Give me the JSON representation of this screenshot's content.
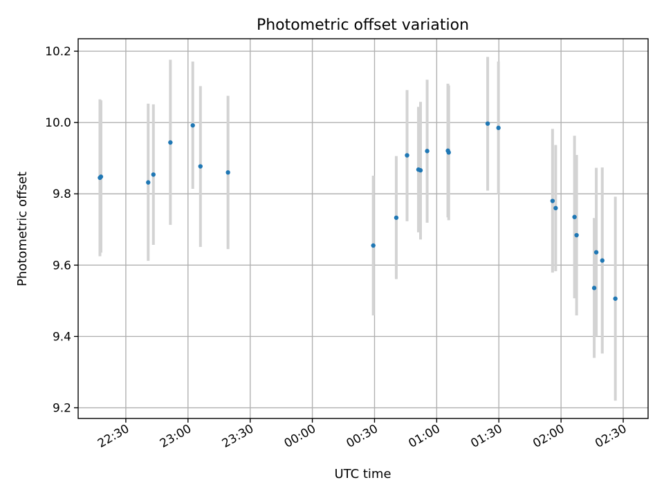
{
  "chart_data": {
    "type": "scatter",
    "title": "Photometric offset variation",
    "xlabel": "UTC time",
    "ylabel": "Photometric offset",
    "x_unit": "minutes",
    "xlim": [
      -113,
      162
    ],
    "ylim": [
      9.17,
      10.235
    ],
    "grid": true,
    "x_ticks": [
      {
        "label": "22:30",
        "value": -90
      },
      {
        "label": "23:00",
        "value": -60
      },
      {
        "label": "23:30",
        "value": -30
      },
      {
        "label": "00:00",
        "value": 0
      },
      {
        "label": "00:30",
        "value": 30
      },
      {
        "label": "01:00",
        "value": 60
      },
      {
        "label": "01:30",
        "value": 90
      },
      {
        "label": "02:00",
        "value": 120
      },
      {
        "label": "02:30",
        "value": 150
      }
    ],
    "y_ticks": [
      9.2,
      9.4,
      9.6,
      9.8,
      10.0,
      10.2
    ],
    "y_tick_labels": [
      "9.2",
      "9.4",
      "9.6",
      "9.8",
      "10.0",
      "10.2"
    ],
    "marker_color": "#1f77b4",
    "errorbar_color": "#d3d3d3",
    "points": [
      {
        "t": -102.5,
        "y": 9.845,
        "lo": 9.625,
        "hi": 10.065
      },
      {
        "t": -102.0,
        "y": 9.848,
        "lo": 9.635,
        "hi": 10.062
      },
      {
        "t": -79.2,
        "y": 9.832,
        "lo": 9.612,
        "hi": 10.053
      },
      {
        "t": -76.7,
        "y": 9.854,
        "lo": 9.657,
        "hi": 10.051
      },
      {
        "t": -68.5,
        "y": 9.944,
        "lo": 9.713,
        "hi": 10.176
      },
      {
        "t": -57.7,
        "y": 9.992,
        "lo": 9.814,
        "hi": 10.171
      },
      {
        "t": -54.0,
        "y": 9.877,
        "lo": 9.651,
        "hi": 10.102
      },
      {
        "t": -40.7,
        "y": 9.86,
        "lo": 9.645,
        "hi": 10.075
      },
      {
        "t": 29.4,
        "y": 9.655,
        "lo": 9.459,
        "hi": 9.851
      },
      {
        "t": 40.5,
        "y": 9.733,
        "lo": 9.561,
        "hi": 9.906
      },
      {
        "t": 45.7,
        "y": 9.908,
        "lo": 9.723,
        "hi": 10.091
      },
      {
        "t": 51.2,
        "y": 9.868,
        "lo": 9.692,
        "hi": 10.044
      },
      {
        "t": 52.2,
        "y": 9.866,
        "lo": 9.672,
        "hi": 10.058
      },
      {
        "t": 55.4,
        "y": 9.92,
        "lo": 9.719,
        "hi": 10.12
      },
      {
        "t": 65.4,
        "y": 9.921,
        "lo": 9.734,
        "hi": 10.109
      },
      {
        "t": 65.8,
        "y": 9.916,
        "lo": 9.726,
        "hi": 10.104
      },
      {
        "t": 84.6,
        "y": 9.997,
        "lo": 9.809,
        "hi": 10.184
      },
      {
        "t": 89.8,
        "y": 9.985,
        "lo": 9.799,
        "hi": 10.171
      },
      {
        "t": 115.9,
        "y": 9.78,
        "lo": 9.579,
        "hi": 9.982
      },
      {
        "t": 117.4,
        "y": 9.76,
        "lo": 9.583,
        "hi": 9.937
      },
      {
        "t": 126.5,
        "y": 9.735,
        "lo": 9.507,
        "hi": 9.963
      },
      {
        "t": 127.5,
        "y": 9.684,
        "lo": 9.459,
        "hi": 9.909
      },
      {
        "t": 136.0,
        "y": 9.536,
        "lo": 9.34,
        "hi": 9.732
      },
      {
        "t": 137.0,
        "y": 9.636,
        "lo": 9.4,
        "hi": 9.873
      },
      {
        "t": 139.9,
        "y": 9.613,
        "lo": 9.352,
        "hi": 9.874
      },
      {
        "t": 146.2,
        "y": 9.506,
        "lo": 9.22,
        "hi": 9.792
      }
    ]
  }
}
